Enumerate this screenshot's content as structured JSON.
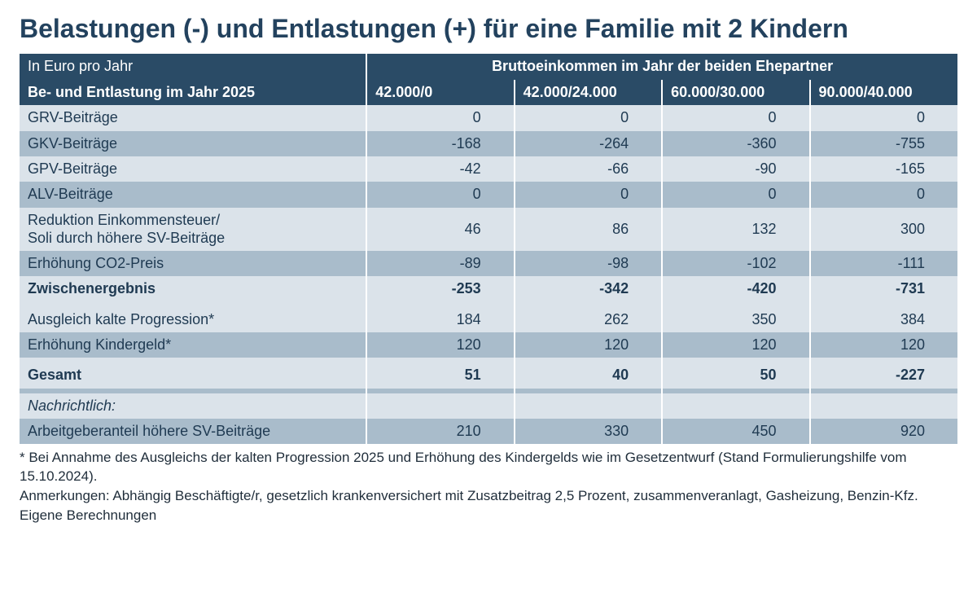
{
  "title": "Belastungen (-) und Entlastungen (+) für eine Familie mit 2 Kindern",
  "colors": {
    "header_bg": "#2a4b66",
    "header_fg": "#ffffff",
    "stripe_light": "#dbe3ea",
    "stripe_dark": "#a9bccb",
    "text": "#1f3a52"
  },
  "table": {
    "header1_left": "In Euro pro Jahr",
    "header1_span": "Bruttoeinkommen im Jahr der beiden Ehepartner",
    "header2_left": "Be- und Entlastung im Jahr 2025",
    "header2_cols": [
      "42.000/0",
      "42.000/24.000",
      "60.000/30.000",
      "90.000/40.000"
    ],
    "rows": [
      {
        "label": "GRV-Beiträge",
        "vals": [
          "0",
          "0",
          "0",
          "0"
        ],
        "stripe": "light",
        "bold": false
      },
      {
        "label": "GKV-Beiträge",
        "vals": [
          "-168",
          "-264",
          "-360",
          "-755"
        ],
        "stripe": "dark",
        "bold": false
      },
      {
        "label": "GPV-Beiträge",
        "vals": [
          "-42",
          "-66",
          "-90",
          "-165"
        ],
        "stripe": "light",
        "bold": false
      },
      {
        "label": "ALV-Beiträge",
        "vals": [
          "0",
          "0",
          "0",
          "0"
        ],
        "stripe": "dark",
        "bold": false
      },
      {
        "label": "Reduktion Einkommensteuer/\nSoli durch höhere SV-Beiträge",
        "vals": [
          "46",
          "86",
          "132",
          "300"
        ],
        "stripe": "light",
        "bold": false,
        "multiline": true
      },
      {
        "label": "Erhöhung CO2-Preis",
        "vals": [
          "-89",
          "-98",
          "-102",
          "-111"
        ],
        "stripe": "dark",
        "bold": false
      },
      {
        "label": "Zwischenergebnis",
        "vals": [
          "-253",
          "-342",
          "-420",
          "-731"
        ],
        "stripe": "light",
        "bold": true
      },
      {
        "spacer": true,
        "stripe": "light"
      },
      {
        "label": "Ausgleich kalte Progression*",
        "vals": [
          "184",
          "262",
          "350",
          "384"
        ],
        "stripe": "light",
        "bold": false
      },
      {
        "label": "Erhöhung Kindergeld*",
        "vals": [
          "120",
          "120",
          "120",
          "120"
        ],
        "stripe": "dark",
        "bold": false
      },
      {
        "spacer": true,
        "stripe": "light"
      },
      {
        "label": "Gesamt",
        "vals": [
          "51",
          "40",
          "50",
          "-227"
        ],
        "stripe": "light",
        "bold": true
      },
      {
        "spacer": true,
        "stripe": "dark"
      },
      {
        "label": "Nachrichtlich:",
        "vals": [
          "",
          "",
          "",
          ""
        ],
        "stripe": "light",
        "italic": true
      },
      {
        "label": "Arbeitgeberanteil höhere SV-Beiträge",
        "vals": [
          "210",
          "330",
          "450",
          "920"
        ],
        "stripe": "dark",
        "bold": false
      }
    ],
    "column_widths_pct": [
      37,
      15.75,
      15.75,
      15.75,
      15.75
    ]
  },
  "footnotes": {
    "line1": "* Bei Annahme des Ausgleichs der kalten Progression 2025 und Erhöhung des Kindergelds wie im Gesetzentwurf (Stand Formulierungshilfe vom 15.10.2024).",
    "line2": "Anmerkungen: Abhängig Beschäftigte/r, gesetzlich krankenversichert mit Zusatzbeitrag 2,5 Prozent, zusammenveranlagt, Gasheizung, Benzin-Kfz.",
    "line3": "Eigene Berechnungen"
  }
}
